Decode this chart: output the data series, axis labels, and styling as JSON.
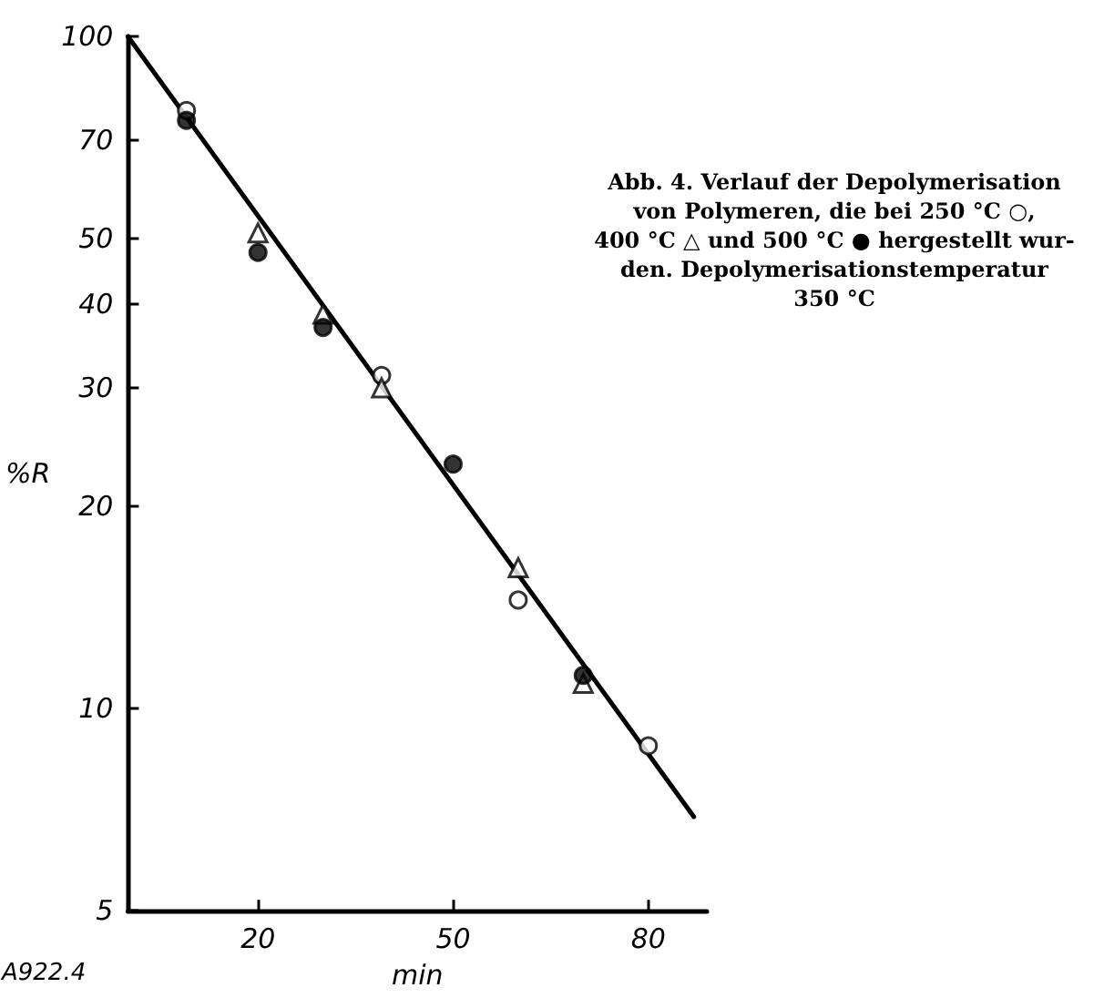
{
  "chart_data": {
    "type": "scatter",
    "xlabel": "min",
    "ylabel": "%R",
    "log": "y",
    "xlim": [
      0,
      89
    ],
    "ylim": [
      5,
      100
    ],
    "xticks": [
      20,
      50,
      80
    ],
    "yticks": [
      5,
      10,
      20,
      30,
      40,
      50,
      70,
      100
    ],
    "grid": false,
    "series": [
      {
        "marker": "circle",
        "color": "#ffffff",
        "x": [
          9,
          39,
          60,
          80
        ],
        "values": [
          77.6,
          31.3,
          14.5,
          8.8
        ]
      },
      {
        "marker": "triangle",
        "color": "#ffffff",
        "x": [
          20,
          30,
          39,
          60,
          70
        ],
        "values": [
          51,
          38.6,
          30,
          16.2,
          10.9
        ]
      },
      {
        "marker": "circle",
        "color": "#000000",
        "x": [
          9,
          20,
          30,
          50,
          70
        ],
        "values": [
          75,
          47.7,
          36.9,
          23.1,
          11.2
        ]
      },
      {
        "type": "line",
        "marker": "none",
        "line_style": "solid",
        "color": "#000000",
        "x": [
          0,
          87
        ],
        "values": [
          100,
          6.9
        ]
      }
    ],
    "annotations": [
      "Abb. 4. Verlauf der Depolymerisation\nvon Polymeren, die bei 250 °C ○,\n400 °C △ und 500 °C ● hergestellt wur-\nden. Depolymerisationstemperatur\n350 °C",
      "A922.4"
    ]
  }
}
